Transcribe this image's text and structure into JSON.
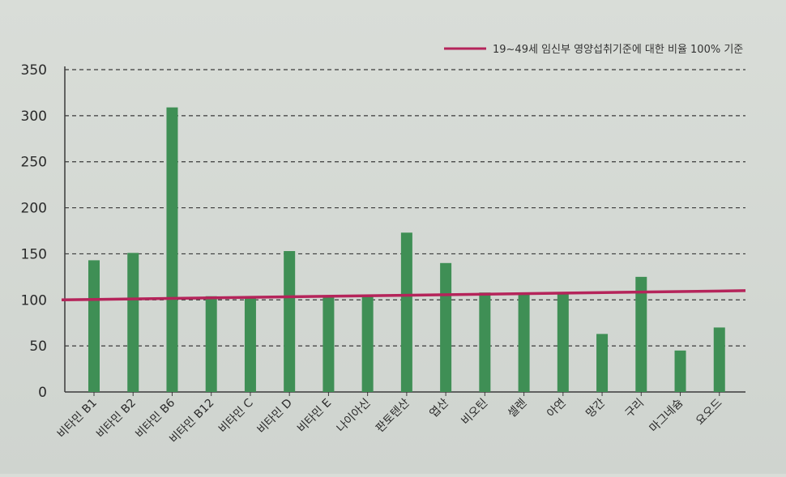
{
  "chart_data": {
    "type": "bar",
    "title": "",
    "xlabel": "",
    "ylabel": "",
    "ylim": [
      0,
      350
    ],
    "yticks": [
      0,
      50,
      100,
      150,
      200,
      250,
      300,
      350
    ],
    "grid": true,
    "legend_position": "top-right",
    "categories": [
      "비타민 B1",
      "비타민 B2",
      "비타민 B6",
      "비타민 B12",
      "비타민 C",
      "비타민 D",
      "비타민 E",
      "나이아신",
      "판토텐산",
      "엽산",
      "비오틴",
      "셀렌",
      "아연",
      "망간",
      "구리",
      "마그네슘",
      "요오드"
    ],
    "series": [
      {
        "values": [
          143,
          151,
          309,
          104,
          104,
          153,
          104,
          104,
          173,
          140,
          108,
          108,
          108,
          63,
          125,
          45,
          70
        ],
        "color": "#3f8f55"
      }
    ],
    "reference_line": {
      "label": "19~49세 임신부 영양섭취기준에 대한 비율 100% 기준",
      "y_start": 100,
      "y_end": 110,
      "color": "#b5245a"
    }
  }
}
